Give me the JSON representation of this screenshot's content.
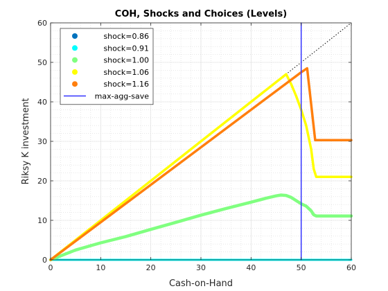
{
  "chart_data": {
    "type": "line",
    "title": "COH, Shocks and Choices (Levels)",
    "xlabel": "Cash-on-Hand",
    "ylabel": "Riksy K investment",
    "xlim": [
      0,
      60
    ],
    "ylim": [
      0,
      60
    ],
    "xticks": [
      0,
      10,
      20,
      30,
      40,
      50,
      60
    ],
    "yticks": [
      0,
      10,
      20,
      30,
      40,
      50,
      60
    ],
    "grid": "minor dotted",
    "legend_position": "top-left",
    "reference_line": {
      "style": "dotted",
      "color": "#000000",
      "x": [
        0,
        60
      ],
      "y": [
        0,
        60
      ]
    },
    "series": [
      {
        "name": "shock=0.86",
        "color": "#0072BD",
        "marker": "dot",
        "x": [
          0,
          60
        ],
        "y": [
          0,
          0
        ]
      },
      {
        "name": "shock=0.91",
        "color": "#00FFFF",
        "marker": "dot",
        "x": [
          0,
          60
        ],
        "y": [
          0,
          0
        ]
      },
      {
        "name": "shock=1.00",
        "color": "#80FF80",
        "marker": "dot",
        "x": [
          0,
          2,
          5,
          10,
          15,
          20,
          25,
          30,
          35,
          40,
          43,
          45,
          46,
          47,
          48,
          49,
          50,
          51,
          52,
          52.5,
          53,
          55,
          60
        ],
        "y": [
          0,
          1.0,
          2.5,
          4.3,
          5.9,
          7.7,
          9.5,
          11.3,
          13.0,
          14.6,
          15.6,
          16.2,
          16.4,
          16.3,
          15.8,
          15.0,
          14.2,
          13.6,
          12.4,
          11.4,
          11.1,
          11.1,
          11.1
        ]
      },
      {
        "name": "shock=1.06",
        "color": "#FFFF00",
        "marker": "dot",
        "x": [
          0,
          47,
          48,
          49,
          50,
          51,
          52,
          52.5,
          53,
          55,
          60
        ],
        "y": [
          0,
          47,
          44.5,
          41.5,
          38,
          34,
          28,
          23,
          21,
          21,
          21
        ]
      },
      {
        "name": "shock=1.16",
        "color": "#FF7F0E",
        "marker": "dot",
        "x": [
          0,
          50,
          51.2,
          52.8,
          54,
          60
        ],
        "y": [
          0,
          47.5,
          48.5,
          30.3,
          30.3,
          30.3
        ]
      },
      {
        "name": "max-agg-save",
        "color": "#3333FF",
        "marker": "line",
        "x": [
          50,
          50
        ],
        "y": [
          0,
          60
        ]
      }
    ]
  }
}
